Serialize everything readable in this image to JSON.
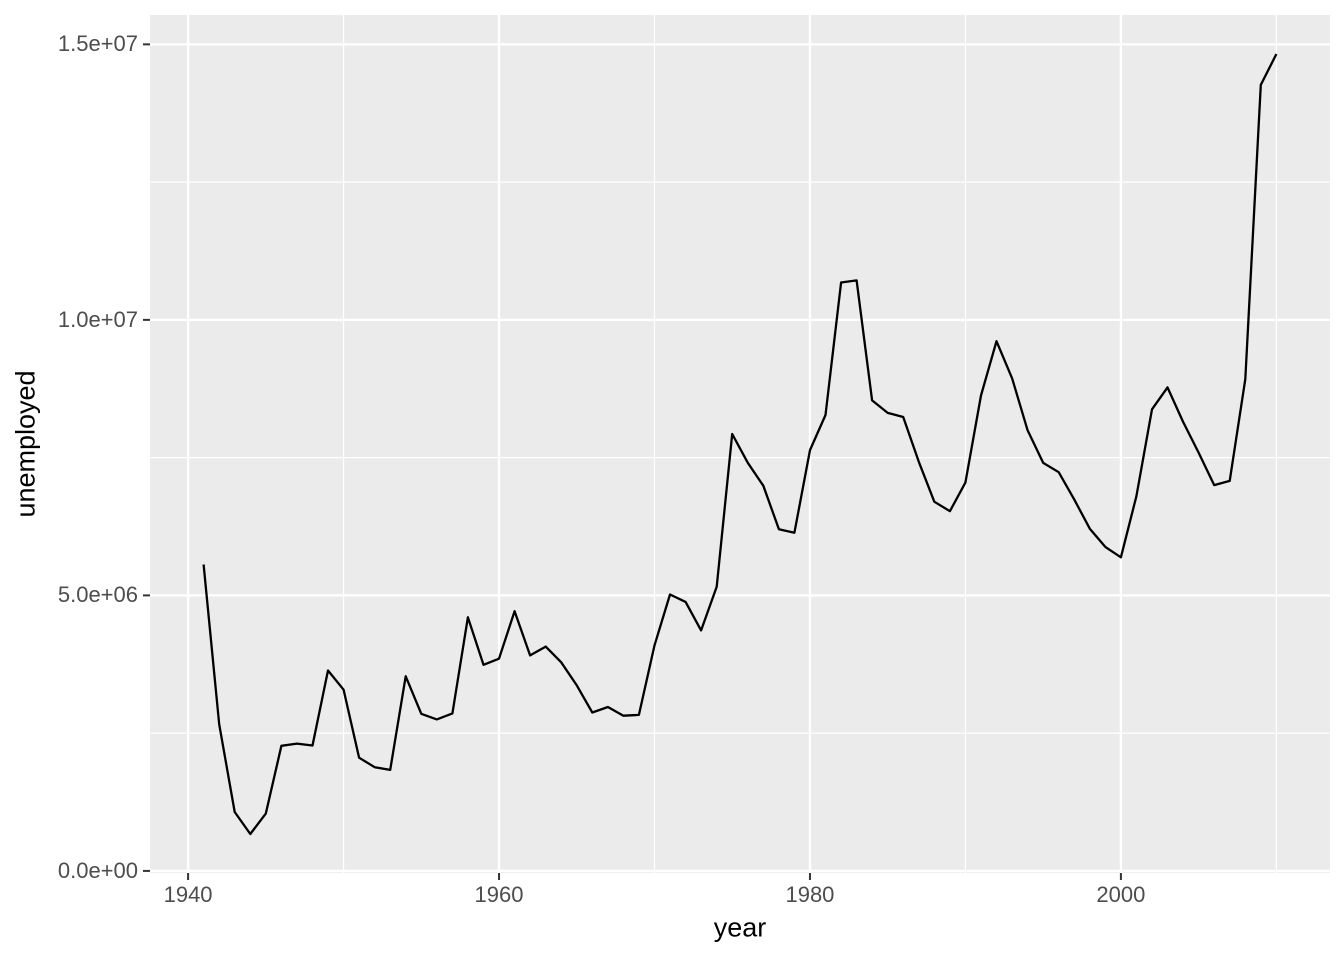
{
  "figure": {
    "background": "#FFFFFF"
  },
  "chart_data": {
    "type": "line",
    "title": "",
    "xlabel": "year",
    "ylabel": "unemployed",
    "panel_bg": "#EBEBEB",
    "grid_color": "#FFFFFF",
    "line_color": "#000000",
    "tick_label_color": "#4D4D4D",
    "axis_title_color": "#000000",
    "tick_mark_color": "#333333",
    "legend": "none",
    "grid": "on",
    "x_ticks": [
      1940,
      1960,
      1980,
      2000
    ],
    "x_tick_labels": [
      "1940",
      "1960",
      "1980",
      "2000"
    ],
    "x_minor_ticks": [
      1950,
      1970,
      1990,
      2010
    ],
    "y_ticks": [
      0,
      5000000,
      10000000,
      15000000
    ],
    "y_tick_labels": [
      "0.0e+00",
      "5.0e+06",
      "1.0e+07",
      "1.5e+07"
    ],
    "y_minor_ticks": [
      2500000,
      7500000,
      12500000
    ],
    "xlim_data": [
      1941,
      2010
    ],
    "ylim_data": [
      670000,
      14825000
    ],
    "expansion": 0.05,
    "series": [
      {
        "name": "unemployed",
        "x": [
          1941,
          1942,
          1943,
          1944,
          1945,
          1946,
          1947,
          1948,
          1949,
          1950,
          1951,
          1952,
          1953,
          1954,
          1955,
          1956,
          1957,
          1958,
          1959,
          1960,
          1961,
          1962,
          1963,
          1964,
          1965,
          1966,
          1967,
          1968,
          1969,
          1970,
          1971,
          1972,
          1973,
          1974,
          1975,
          1976,
          1977,
          1978,
          1979,
          1980,
          1981,
          1982,
          1983,
          1984,
          1985,
          1986,
          1987,
          1988,
          1989,
          1990,
          1991,
          1992,
          1993,
          1994,
          1995,
          1996,
          1997,
          1998,
          1999,
          2000,
          2001,
          2002,
          2003,
          2004,
          2005,
          2006,
          2007,
          2008,
          2009,
          2010
        ],
        "y": [
          5560000,
          2660000,
          1070000,
          670000,
          1040000,
          2270000,
          2311000,
          2276000,
          3637000,
          3288000,
          2055000,
          1883000,
          1834000,
          3532000,
          2852000,
          2750000,
          2859000,
          4602000,
          3740000,
          3852000,
          4714000,
          3911000,
          4070000,
          3786000,
          3366000,
          2875000,
          2975000,
          2817000,
          2832000,
          4093000,
          5016000,
          4882000,
          4365000,
          5156000,
          7929000,
          7406000,
          6991000,
          6202000,
          6137000,
          7637000,
          8273000,
          10678000,
          10717000,
          8539000,
          8312000,
          8237000,
          7425000,
          6701000,
          6528000,
          7047000,
          8628000,
          9613000,
          8940000,
          7996000,
          7404000,
          7236000,
          6739000,
          6210000,
          5880000,
          5692000,
          6801000,
          8378000,
          8774000,
          8149000,
          7591000,
          7001000,
          7078000,
          8924000,
          14265000,
          14825000
        ]
      }
    ]
  }
}
